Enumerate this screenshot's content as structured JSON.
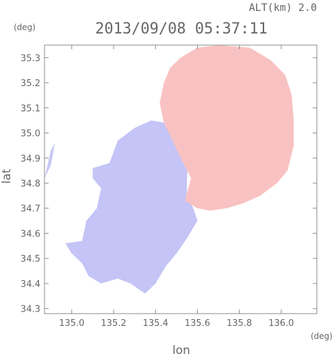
{
  "header": {
    "altitude": "ALT(km) 2.0",
    "timestamp": "2013/09/08 05:37:11"
  },
  "axes": {
    "y_unit": "(deg)",
    "x_unit": "(deg)",
    "xlabel": "lon",
    "ylabel": "lat"
  },
  "chart_data": {
    "type": "heatmap",
    "title": "",
    "xlabel": "lon",
    "ylabel": "lat",
    "xlim": [
      134.87,
      136.17
    ],
    "ylim": [
      34.28,
      35.35
    ],
    "x_ticks": [
      "135.0",
      "135.2",
      "135.4",
      "135.6",
      "135.8",
      "136.0"
    ],
    "y_ticks": [
      "34.3",
      "34.4",
      "34.5",
      "34.6",
      "34.7",
      "34.8",
      "34.9",
      "35.0",
      "35.1",
      "35.2",
      "35.3"
    ],
    "grid": false,
    "colors": {
      "approaching": "#b8b8f4",
      "receding": "#f8b8b8",
      "axis": "#888888"
    },
    "regions": [
      {
        "name": "approaching",
        "color": "#c4c4f6",
        "points": [
          [
            134.97,
            34.56
          ],
          [
            135.05,
            34.57
          ],
          [
            135.07,
            34.65
          ],
          [
            135.12,
            34.7
          ],
          [
            135.14,
            34.78
          ],
          [
            135.1,
            34.82
          ],
          [
            135.1,
            34.86
          ],
          [
            135.18,
            34.88
          ],
          [
            135.22,
            34.97
          ],
          [
            135.3,
            35.02
          ],
          [
            135.38,
            35.05
          ],
          [
            135.45,
            35.04
          ],
          [
            135.5,
            34.98
          ],
          [
            135.56,
            34.92
          ],
          [
            135.55,
            34.82
          ],
          [
            135.55,
            34.76
          ],
          [
            135.58,
            34.7
          ],
          [
            135.6,
            34.65
          ],
          [
            135.55,
            34.58
          ],
          [
            135.5,
            34.52
          ],
          [
            135.45,
            34.47
          ],
          [
            135.4,
            34.4
          ],
          [
            135.35,
            34.36
          ],
          [
            135.28,
            34.4
          ],
          [
            135.22,
            34.42
          ],
          [
            135.14,
            34.4
          ],
          [
            135.08,
            34.43
          ],
          [
            135.05,
            34.48
          ],
          [
            135.0,
            34.52
          ]
        ]
      },
      {
        "name": "approaching-west-patch",
        "color": "#c8c8f6",
        "points": [
          [
            134.87,
            34.82
          ],
          [
            134.9,
            34.93
          ],
          [
            134.92,
            34.96
          ],
          [
            134.9,
            34.87
          ]
        ]
      },
      {
        "name": "receding",
        "color": "#f9c2c2",
        "points": [
          [
            135.54,
            34.73
          ],
          [
            135.57,
            34.82
          ],
          [
            135.52,
            34.9
          ],
          [
            135.47,
            34.99
          ],
          [
            135.44,
            35.04
          ],
          [
            135.42,
            35.12
          ],
          [
            135.44,
            35.2
          ],
          [
            135.47,
            35.26
          ],
          [
            135.52,
            35.3
          ],
          [
            135.6,
            35.34
          ],
          [
            135.7,
            35.35
          ],
          [
            135.85,
            35.34
          ],
          [
            135.95,
            35.29
          ],
          [
            136.02,
            35.23
          ],
          [
            136.05,
            35.15
          ],
          [
            136.06,
            35.05
          ],
          [
            136.06,
            34.95
          ],
          [
            136.03,
            34.85
          ],
          [
            135.98,
            34.8
          ],
          [
            135.9,
            34.75
          ],
          [
            135.82,
            34.72
          ],
          [
            135.74,
            34.7
          ],
          [
            135.66,
            34.69
          ],
          [
            135.6,
            34.7
          ]
        ]
      }
    ]
  }
}
